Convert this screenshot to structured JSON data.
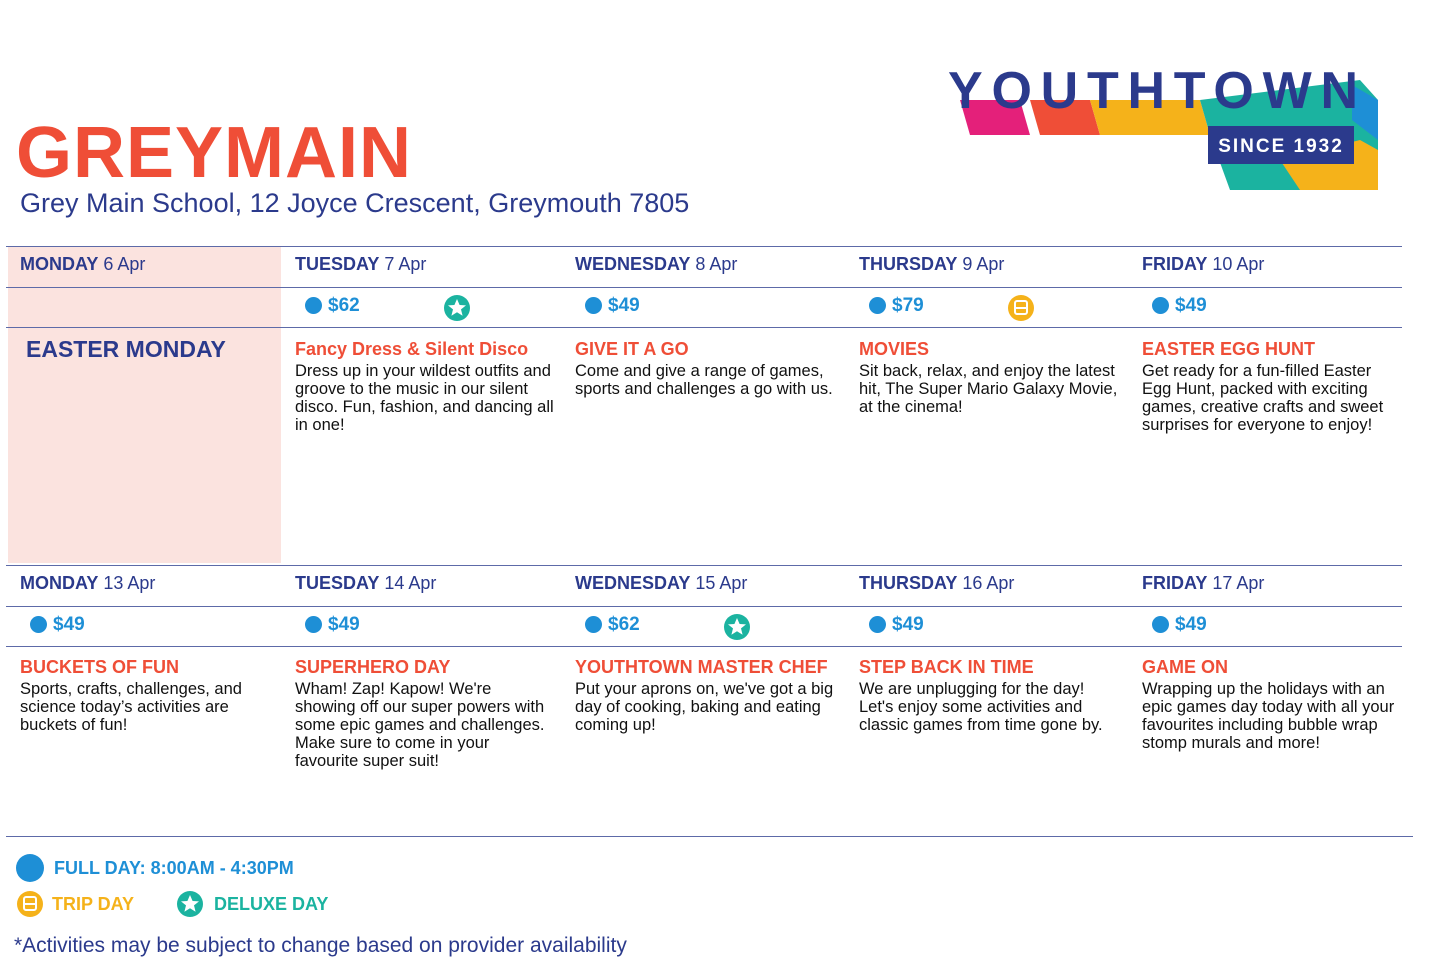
{
  "header": {
    "title": "GREYMAIN",
    "address": "Grey Main School, 12 Joyce Crescent, Greymouth 7805",
    "logo": {
      "name": "YOUTHTOWN",
      "tagline": "SINCE 1932"
    }
  },
  "weeks": [
    {
      "days": [
        {
          "day": "MONDAY",
          "date": "6 Apr",
          "activity": "EASTER MONDAY",
          "highlight": true
        },
        {
          "day": "TUESDAY",
          "date": "7 Apr",
          "price": "$62",
          "badge": "deluxe",
          "activity": "Fancy Dress & Silent Disco",
          "description": "Dress up in your wildest outfits and groove to the music in our silent disco. Fun, fashion, and dancing all in one!"
        },
        {
          "day": "WEDNESDAY",
          "date": "8 Apr",
          "price": "$49",
          "activity": "GIVE IT A GO",
          "description": "Come and give a range of games, sports and challenges a go with us."
        },
        {
          "day": "THURSDAY",
          "date": "9 Apr",
          "price": "$79",
          "badge": "trip",
          "activity": "MOVIES",
          "description": "Sit back, relax, and enjoy the latest hit, The Super Mario Galaxy Movie, at the cinema!"
        },
        {
          "day": "FRIDAY",
          "date": "10 Apr",
          "price": "$49",
          "activity": "EASTER EGG HUNT",
          "description": "Get ready for a fun-filled Easter Egg Hunt, packed with exciting games, creative crafts and sweet surprises for everyone to enjoy!"
        }
      ]
    },
    {
      "days": [
        {
          "day": "MONDAY",
          "date": "13 Apr",
          "price": "$49",
          "activity": "BUCKETS OF FUN",
          "description": "Sports, crafts, challenges, and science today’s activities are buckets of fun!"
        },
        {
          "day": "TUESDAY",
          "date": "14 Apr",
          "price": "$49",
          "activity": "SUPERHERO DAY",
          "description": "Wham! Zap! Kapow! We're showing off our super powers with some epic games and challenges. Make sure to come in your favourite super suit!"
        },
        {
          "day": "WEDNESDAY",
          "date": "15 Apr",
          "price": "$62",
          "badge": "deluxe",
          "activity": "YOUTHTOWN MASTER CHEF",
          "description": "Put your aprons on, we've got a big day of cooking, baking and eating coming up!"
        },
        {
          "day": "THURSDAY",
          "date": "16 Apr",
          "price": "$49",
          "activity": "STEP BACK IN TIME",
          "description": "We are unplugging for the day! Let's enjoy some activities and classic games from time gone by."
        },
        {
          "day": "FRIDAY",
          "date": "17 Apr",
          "price": "$49",
          "activity": "GAME ON",
          "description": "Wrapping up the holidays with an epic games day today with all your favourites including bubble wrap stomp murals and more!"
        }
      ]
    }
  ],
  "legend": {
    "full_day": "FULL DAY: 8:00AM - 4:30PM",
    "trip_day": "TRIP DAY",
    "deluxe_day": "DELUXE DAY"
  },
  "footnote": "*Activities may be subject to change based on provider availability"
}
